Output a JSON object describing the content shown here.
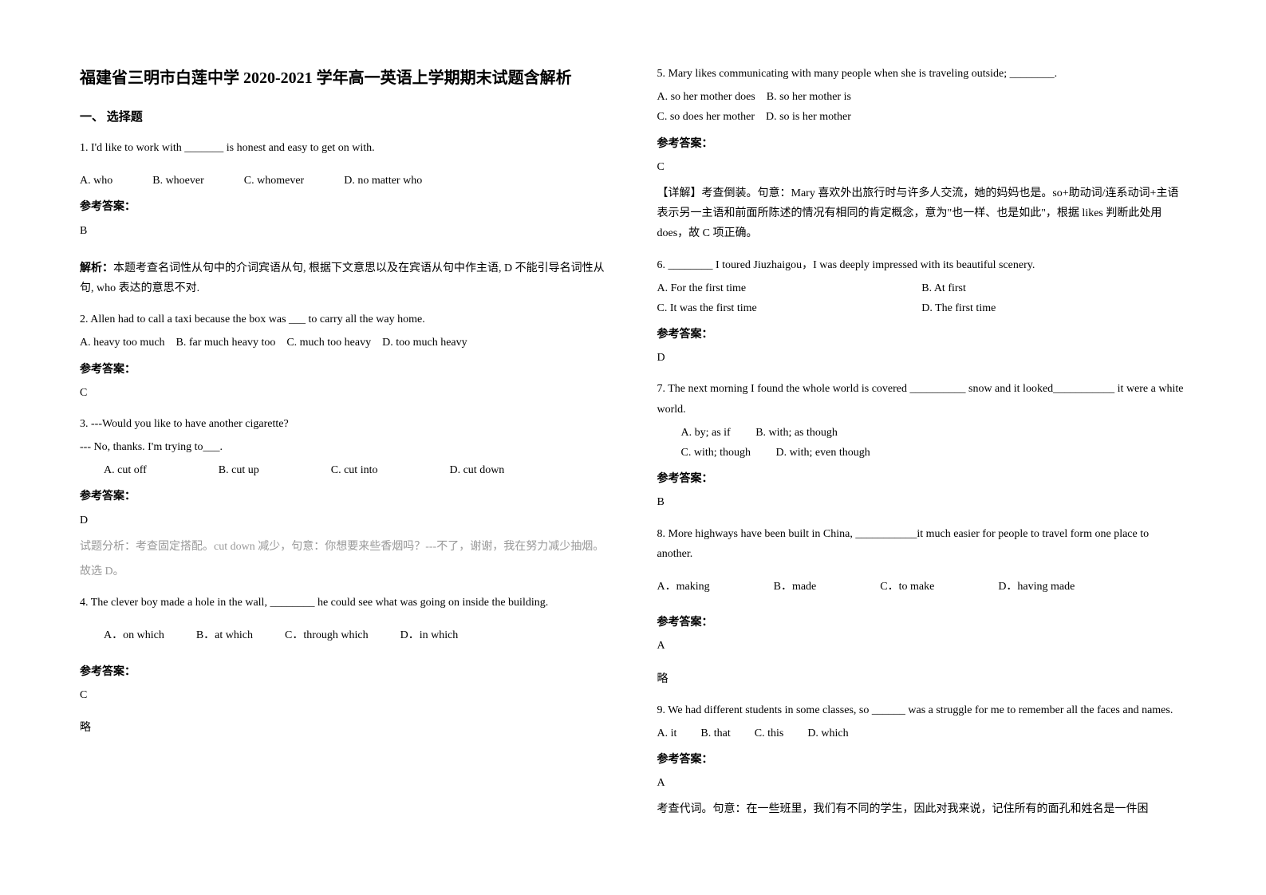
{
  "title": "福建省三明市白莲中学 2020-2021 学年高一英语上学期期末试题含解析",
  "section1_header": "一、 选择题",
  "q1": {
    "text": "1. I'd like to work with _______ is honest and easy to get on with.",
    "optA": "A. who",
    "optB": "B. whoever",
    "optC": "C. whomever",
    "optD": "D. no matter who",
    "answer_label": "参考答案：",
    "answer": "B",
    "explanation_label": "解析：",
    "explanation": "本题考查名词性从句中的介词宾语从句, 根据下文意思以及在宾语从句中作主语, D 不能引导名词性从句, who 表达的意思不对."
  },
  "q2": {
    "text": "2. Allen had to call a taxi because the box was ___ to carry all the way home.",
    "optA": "A. heavy too much",
    "optB": "B. far much heavy too",
    "optC": "C. much too heavy",
    "optD": "D. too much heavy",
    "answer_label": "参考答案：",
    "answer": "C"
  },
  "q3": {
    "text1": "3. ---Would you like to have another cigarette?",
    "text2": "--- No, thanks. I'm trying to___.",
    "optA": "A. cut off",
    "optB": "B. cut up",
    "optC": "C. cut into",
    "optD": "D. cut down",
    "answer_label": "参考答案：",
    "answer": "D",
    "explanation1": "试题分析：考查固定搭配。cut down 减少，句意：你想要来些香烟吗？---不了，谢谢，我在努力减少抽烟。",
    "explanation2": "故选 D。"
  },
  "q4": {
    "text": "4. The clever boy made a hole in the wall, ________ he could see what was going on inside the building.",
    "optA": "A．on which",
    "optB": "B．at which",
    "optC": "C．through which",
    "optD": "D．in which",
    "answer_label": "参考答案：",
    "answer": "C",
    "omit": "略"
  },
  "q5": {
    "text": "5. Mary likes communicating with many people when she is traveling outside; ________.",
    "optA": "A. so her mother does",
    "optB": "B. so her mother is",
    "optC": "C. so does her mother",
    "optD": "D. so is her mother",
    "answer_label": "参考答案：",
    "answer": "C",
    "explanation": "【详解】考查倒装。句意：Mary 喜欢外出旅行时与许多人交流，她的妈妈也是。so+助动词/连系动词+主语表示另一主语和前面所陈述的情况有相同的肯定概念，意为\"也一样、也是如此\"，根据 likes 判断此处用 does，故 C 项正确。"
  },
  "q6": {
    "text": "6. ________ I toured Jiuzhaigou，I was deeply impressed with its beautiful scenery.",
    "optA": "A. For the first time",
    "optB": "B. At first",
    "optC": "C. It was the first time",
    "optD": "D. The first time",
    "answer_label": "参考答案：",
    "answer": "D"
  },
  "q7": {
    "text": "7. The next morning I found the whole world is covered __________ snow and it looked___________ it were a white world.",
    "optA": "A. by; as if",
    "optB": "B. with; as though",
    "optC": "C. with; though",
    "optD": "D. with; even though",
    "answer_label": "参考答案：",
    "answer": "B"
  },
  "q8": {
    "text": "8. More highways have been built in China, ___________it much easier for people to travel form one place to another.",
    "optA": "A．making",
    "optB": "B．made",
    "optC": "C．to make",
    "optD": "D．having made",
    "answer_label": "参考答案：",
    "answer": "A",
    "omit": "略"
  },
  "q9": {
    "text": "9. We had different students in some classes, so ______ was a struggle for me to remember all the faces and names.",
    "optA": "A. it",
    "optB": "B. that",
    "optC": "C. this",
    "optD": "D. which",
    "answer_label": "参考答案：",
    "answer": "A",
    "explanation": "考查代词。句意：在一些班里，我们有不同的学生，因此对我来说，记住所有的面孔和姓名是一件困"
  }
}
